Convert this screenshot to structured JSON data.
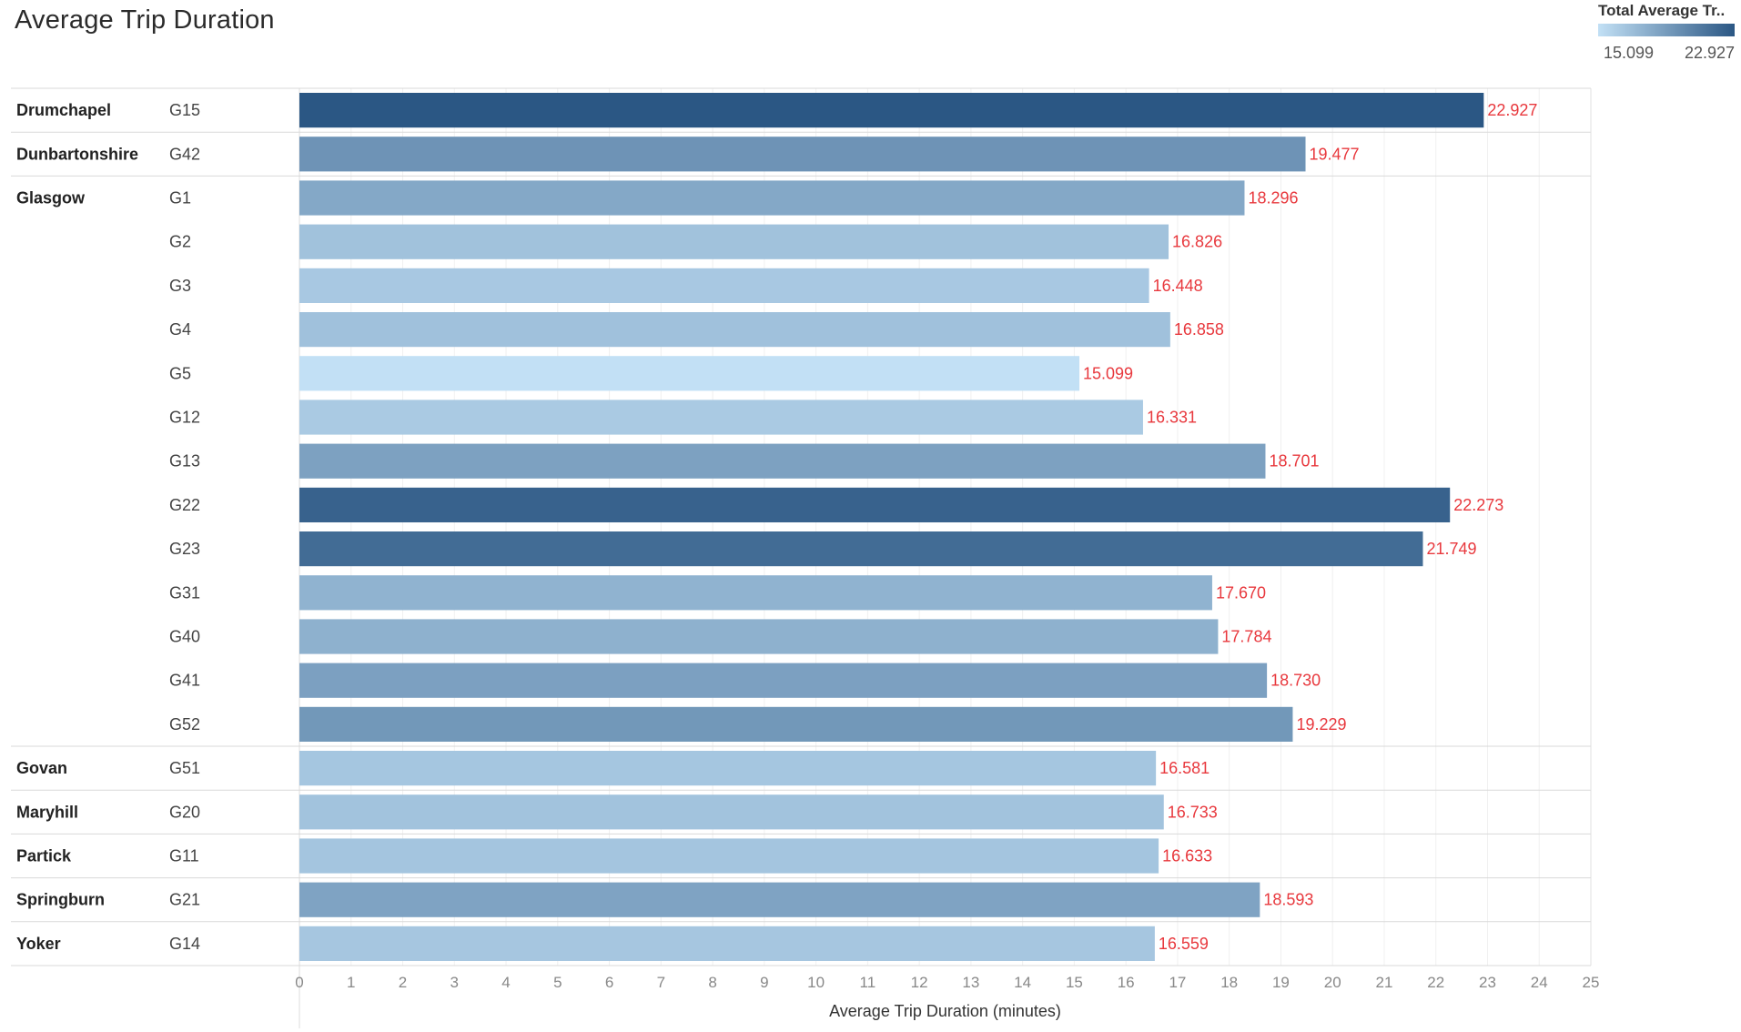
{
  "title": "Average Trip Duration",
  "legend": {
    "title": "Total Average Tr..",
    "min_label": "15.099",
    "max_label": "22.927",
    "color_low": "#c2e0f5",
    "color_high": "#2b5784"
  },
  "value_label_color": "#e8383d",
  "chart_data": {
    "type": "bar",
    "orientation": "horizontal",
    "title": "Average Trip Duration",
    "xlabel": "Average Trip Duration (minutes)",
    "xlim": [
      0,
      25
    ],
    "ticks": [
      0,
      1,
      2,
      3,
      4,
      5,
      6,
      7,
      8,
      9,
      10,
      11,
      12,
      13,
      14,
      15,
      16,
      17,
      18,
      19,
      20,
      21,
      22,
      23,
      24,
      25
    ],
    "groups": [
      {
        "name": "Drumchapel",
        "rows": [
          {
            "code": "G15",
            "value": 22.927
          }
        ]
      },
      {
        "name": "Dunbartonshire",
        "rows": [
          {
            "code": "G42",
            "value": 19.477
          }
        ]
      },
      {
        "name": "Glasgow",
        "rows": [
          {
            "code": "G1",
            "value": 18.296
          },
          {
            "code": "G2",
            "value": 16.826
          },
          {
            "code": "G3",
            "value": 16.448
          },
          {
            "code": "G4",
            "value": 16.858
          },
          {
            "code": "G5",
            "value": 15.099
          },
          {
            "code": "G12",
            "value": 16.331
          },
          {
            "code": "G13",
            "value": 18.701
          },
          {
            "code": "G22",
            "value": 22.273
          },
          {
            "code": "G23",
            "value": 21.749
          },
          {
            "code": "G31",
            "value": 17.67
          },
          {
            "code": "G40",
            "value": 17.784
          },
          {
            "code": "G41",
            "value": 18.73
          },
          {
            "code": "G52",
            "value": 19.229
          }
        ]
      },
      {
        "name": "Govan",
        "rows": [
          {
            "code": "G51",
            "value": 16.581
          }
        ]
      },
      {
        "name": "Maryhill",
        "rows": [
          {
            "code": "G20",
            "value": 16.733
          }
        ]
      },
      {
        "name": "Partick",
        "rows": [
          {
            "code": "G11",
            "value": 16.633
          }
        ]
      },
      {
        "name": "Springburn",
        "rows": [
          {
            "code": "G21",
            "value": 18.593
          }
        ]
      },
      {
        "name": "Yoker",
        "rows": [
          {
            "code": "G14",
            "value": 16.559
          }
        ]
      }
    ]
  }
}
